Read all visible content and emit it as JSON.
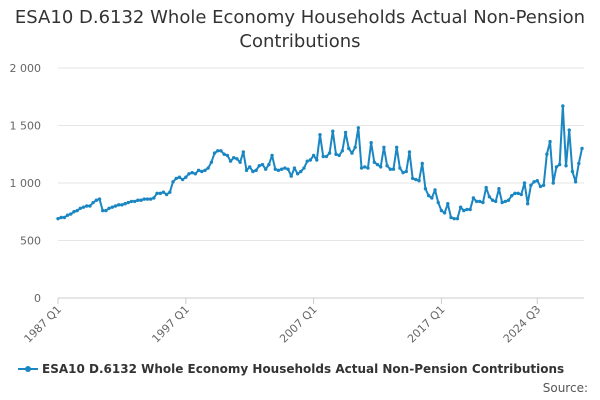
{
  "chart_data": {
    "type": "line",
    "title": "ESA10 D.6132 Whole Economy Households Actual Non-Pension Contributions",
    "xlabel": "",
    "ylabel": "",
    "ylim": [
      0,
      2000
    ],
    "y_ticks": [
      0,
      500,
      1000,
      1500,
      2000
    ],
    "y_tick_labels": [
      "0",
      "500",
      "1 000",
      "1 500",
      "2 000"
    ],
    "x_tick_labels": [
      "1987 Q1",
      "1997 Q1",
      "2007 Q1",
      "2017 Q1",
      "2024 Q3"
    ],
    "grid": true,
    "legend_position": "bottom",
    "series": [
      {
        "name": "ESA10 D.6132 Whole Economy Households Actual Non-Pension Contributions",
        "color": "#1a86c2",
        "start": "1987 Q1",
        "end": "2024 Q3",
        "values": [
          690,
          700,
          700,
          720,
          730,
          750,
          760,
          780,
          790,
          800,
          800,
          830,
          850,
          860,
          760,
          760,
          780,
          790,
          800,
          810,
          810,
          820,
          830,
          840,
          840,
          850,
          850,
          860,
          860,
          860,
          870,
          910,
          910,
          920,
          900,
          920,
          1010,
          1040,
          1050,
          1030,
          1050,
          1080,
          1090,
          1080,
          1110,
          1100,
          1110,
          1130,
          1180,
          1260,
          1280,
          1280,
          1250,
          1240,
          1190,
          1220,
          1210,
          1180,
          1270,
          1110,
          1140,
          1100,
          1110,
          1150,
          1160,
          1120,
          1160,
          1240,
          1120,
          1110,
          1120,
          1130,
          1120,
          1060,
          1130,
          1080,
          1100,
          1130,
          1190,
          1200,
          1240,
          1200,
          1420,
          1230,
          1230,
          1260,
          1450,
          1250,
          1240,
          1280,
          1440,
          1300,
          1260,
          1310,
          1480,
          1130,
          1140,
          1130,
          1350,
          1180,
          1160,
          1140,
          1310,
          1150,
          1120,
          1120,
          1310,
          1130,
          1090,
          1100,
          1270,
          1040,
          1030,
          1020,
          1170,
          950,
          890,
          870,
          940,
          830,
          760,
          740,
          820,
          700,
          690,
          690,
          790,
          760,
          770,
          770,
          870,
          840,
          840,
          830,
          960,
          880,
          850,
          840,
          950,
          830,
          840,
          850,
          890,
          910,
          910,
          900,
          1000,
          820,
          980,
          1010,
          1020,
          970,
          980,
          1250,
          1360,
          1000,
          1140,
          1160,
          1670,
          1150,
          1460,
          1100,
          1010,
          1170,
          1300
        ]
      }
    ]
  },
  "legend": {
    "label": "ESA10 D.6132 Whole Economy Households Actual Non-Pension Contributions"
  },
  "footer": {
    "source_label": "Source:"
  }
}
